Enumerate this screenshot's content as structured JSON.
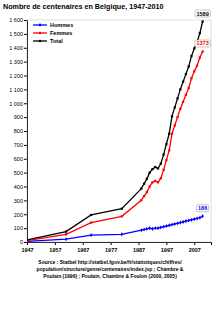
{
  "chart_data": {
    "type": "line",
    "title": "Nombre de centenaires en Belgique, 1947-2010",
    "x": [
      1947,
      1961,
      1970,
      1981,
      1988,
      1989,
      1990,
      1991,
      1992,
      1993,
      1994,
      1995,
      1996,
      1997,
      1998,
      1999,
      2000,
      2001,
      2002,
      2003,
      2004,
      2005,
      2006,
      2007,
      2008,
      2009,
      2010
    ],
    "series": [
      {
        "name": "Hommes",
        "color": "#0000ff",
        "marker": "diamond",
        "line_style": "solid",
        "values": [
          5,
          20,
          50,
          55,
          85,
          90,
          95,
          100,
          95,
          100,
          100,
          105,
          110,
          115,
          120,
          125,
          130,
          135,
          140,
          145,
          150,
          155,
          160,
          165,
          170,
          175,
          186
        ]
      },
      {
        "name": "Femmes",
        "color": "#ff0000",
        "marker": "square",
        "line_style": "solid",
        "values": [
          10,
          55,
          140,
          185,
          300,
          330,
          360,
          400,
          430,
          440,
          430,
          460,
          520,
          590,
          660,
          780,
          840,
          900,
          960,
          1010,
          1060,
          1110,
          1180,
          1230,
          1270,
          1330,
          1373
        ]
      },
      {
        "name": "Total",
        "color": "#000000",
        "marker": "square",
        "line_style": "solid",
        "values": [
          15,
          75,
          195,
          240,
          385,
          420,
          455,
          500,
          525,
          540,
          530,
          565,
          630,
          705,
          780,
          905,
          970,
          1035,
          1100,
          1155,
          1210,
          1265,
          1340,
          1395,
          1440,
          1505,
          1589
        ]
      }
    ],
    "xlim": [
      1947,
      2013
    ],
    "xticks": [
      1947,
      1957,
      1967,
      1977,
      1987,
      1997,
      2007
    ],
    "ylim": [
      0,
      1600
    ],
    "yticks": [
      0,
      100,
      200,
      300,
      400,
      500,
      600,
      700,
      800,
      900,
      {
        "value": 1000,
        "label": "1 000"
      },
      {
        "value": 1100,
        "label": "1 100"
      },
      {
        "value": 1200,
        "label": "1 200"
      },
      {
        "value": 1300,
        "label": "1 300"
      },
      {
        "value": 1400,
        "label": "1 400"
      },
      {
        "value": 1500,
        "label": "1 500"
      },
      {
        "value": 1600,
        "label": "1 600"
      }
    ],
    "grid": false,
    "legend": "upper left",
    "annotations": [
      {
        "text": "1589",
        "x": 2010,
        "y": 1589
      },
      {
        "text": "1373",
        "x": 2010,
        "y": 1373
      },
      {
        "text": "186",
        "x": 2010,
        "y": 186
      }
    ],
    "source": [
      "Source : Statbel http://statbel.fgov.be/fr/statistiques/chiffres/",
      "population/structure/genre/centenaires/index.jsp ; Chambre &",
      "Poulain (1996) ; Poulain, Chambre & Foulon (2000, 2005)"
    ]
  }
}
